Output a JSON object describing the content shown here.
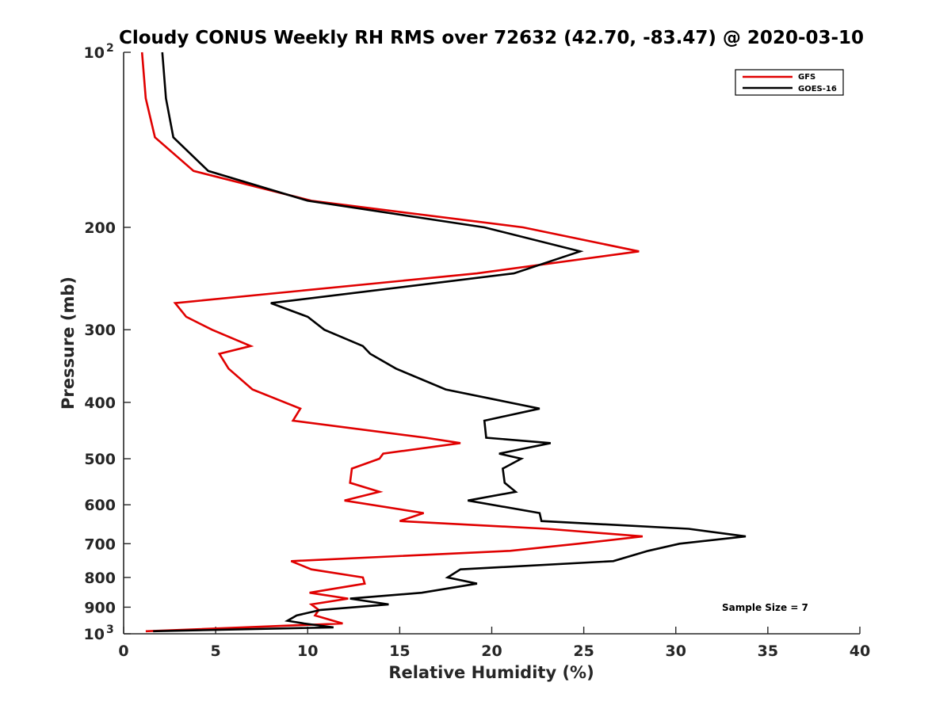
{
  "chart_data": {
    "type": "line",
    "title": "Cloudy CONUS Weekly RH RMS over 72632 (42.70, -83.47) @ 2020-03-10",
    "xlabel": "Relative Humidity (%)",
    "ylabel": "Pressure (mb)",
    "xlim": [
      0,
      40
    ],
    "ylim": [
      100,
      1000
    ],
    "yscale": "log",
    "y_reversed": true,
    "x_ticks": [
      0,
      5,
      10,
      15,
      20,
      25,
      30,
      35,
      40
    ],
    "y_ticks": [
      {
        "value": 100,
        "label": "10",
        "sup": "2"
      },
      {
        "value": 200,
        "label": "200",
        "sup": ""
      },
      {
        "value": 300,
        "label": "300",
        "sup": ""
      },
      {
        "value": 400,
        "label": "400",
        "sup": ""
      },
      {
        "value": 500,
        "label": "500",
        "sup": ""
      },
      {
        "value": 600,
        "label": "600",
        "sup": ""
      },
      {
        "value": 700,
        "label": "700",
        "sup": ""
      },
      {
        "value": 800,
        "label": "800",
        "sup": ""
      },
      {
        "value": 900,
        "label": "900",
        "sup": ""
      },
      {
        "value": 1000,
        "label": "10",
        "sup": "3"
      }
    ],
    "grid": false,
    "legend_position": "top-right",
    "series": [
      {
        "name": "GFS",
        "color": "#e00000",
        "points": [
          [
            1.0,
            100
          ],
          [
            1.2,
            120
          ],
          [
            1.7,
            140
          ],
          [
            3.8,
            160
          ],
          [
            10.2,
            180
          ],
          [
            21.7,
            200
          ],
          [
            28.0,
            220
          ],
          [
            19.2,
            240
          ],
          [
            2.8,
            270
          ],
          [
            3.4,
            285
          ],
          [
            4.8,
            300
          ],
          [
            6.9,
            320
          ],
          [
            5.2,
            330
          ],
          [
            5.7,
            350
          ],
          [
            7.0,
            380
          ],
          [
            9.6,
            410
          ],
          [
            9.2,
            430
          ],
          [
            16.4,
            460
          ],
          [
            18.3,
            470
          ],
          [
            14.1,
            490
          ],
          [
            13.9,
            500
          ],
          [
            12.4,
            520
          ],
          [
            12.3,
            550
          ],
          [
            13.9,
            570
          ],
          [
            12.0,
            590
          ],
          [
            16.3,
            620
          ],
          [
            15.0,
            640
          ],
          [
            23.0,
            660
          ],
          [
            28.2,
            680
          ],
          [
            24.7,
            700
          ],
          [
            21.0,
            720
          ],
          [
            9.1,
            750
          ],
          [
            10.2,
            775
          ],
          [
            13.0,
            800
          ],
          [
            13.1,
            820
          ],
          [
            10.1,
            850
          ],
          [
            12.2,
            870
          ],
          [
            10.2,
            890
          ],
          [
            10.6,
            910
          ],
          [
            10.4,
            930
          ],
          [
            11.9,
            960
          ],
          [
            1.2,
            990
          ]
        ]
      },
      {
        "name": "GOES-16",
        "color": "#000000",
        "points": [
          [
            2.1,
            100
          ],
          [
            2.3,
            120
          ],
          [
            2.7,
            140
          ],
          [
            4.6,
            160
          ],
          [
            10.0,
            180
          ],
          [
            19.6,
            200
          ],
          [
            24.8,
            220
          ],
          [
            21.2,
            240
          ],
          [
            8.0,
            270
          ],
          [
            10.0,
            285
          ],
          [
            10.9,
            300
          ],
          [
            13.0,
            320
          ],
          [
            13.4,
            330
          ],
          [
            14.8,
            350
          ],
          [
            17.5,
            380
          ],
          [
            22.6,
            410
          ],
          [
            19.6,
            430
          ],
          [
            19.7,
            460
          ],
          [
            23.2,
            470
          ],
          [
            20.4,
            490
          ],
          [
            21.6,
            500
          ],
          [
            20.6,
            520
          ],
          [
            20.7,
            550
          ],
          [
            21.3,
            570
          ],
          [
            18.7,
            590
          ],
          [
            22.6,
            620
          ],
          [
            22.7,
            640
          ],
          [
            30.7,
            660
          ],
          [
            33.8,
            680
          ],
          [
            30.2,
            700
          ],
          [
            28.5,
            720
          ],
          [
            26.6,
            750
          ],
          [
            18.3,
            775
          ],
          [
            17.6,
            800
          ],
          [
            19.2,
            820
          ],
          [
            16.2,
            850
          ],
          [
            12.3,
            870
          ],
          [
            14.4,
            890
          ],
          [
            10.7,
            910
          ],
          [
            9.4,
            930
          ],
          [
            8.9,
            950
          ],
          [
            9.8,
            960
          ],
          [
            11.4,
            975
          ],
          [
            1.6,
            990
          ]
        ]
      }
    ],
    "annotations": [
      {
        "text": "Sample Size = 7"
      }
    ]
  }
}
